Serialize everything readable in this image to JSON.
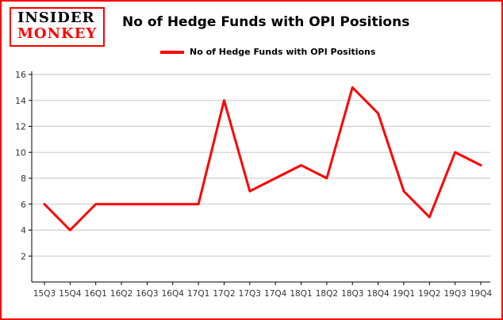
{
  "logo": {
    "line1": "INSIDER",
    "line2": "MONKEY"
  },
  "header": {
    "title": "No of Hedge Funds with OPI Positions"
  },
  "legend": {
    "label": "No of Hedge Funds with OPI Positions"
  },
  "colors": {
    "line": "#fe0000",
    "border": "#fe0000",
    "grid": "#c6c6c6",
    "axis": "#000000",
    "tick_text": "#333333"
  },
  "chart_data": {
    "type": "line",
    "title": "No of Hedge Funds with OPI Positions",
    "categories": [
      "15Q3",
      "15Q4",
      "16Q1",
      "16Q2",
      "16Q3",
      "16Q4",
      "17Q1",
      "17Q2",
      "17Q3",
      "17Q4",
      "18Q1",
      "18Q2",
      "18Q3",
      "18Q4",
      "19Q1",
      "19Q2",
      "19Q3",
      "19Q4"
    ],
    "values": [
      6,
      4,
      6,
      6,
      6,
      6,
      6,
      14,
      7,
      8,
      9,
      8,
      15,
      13,
      7,
      5,
      10,
      9
    ],
    "series_name": "No of Hedge Funds with OPI Positions",
    "xlabel": "",
    "ylabel": "",
    "ylim": [
      0,
      16
    ],
    "yticks": [
      2,
      4,
      6,
      8,
      10,
      12,
      14,
      16
    ],
    "grid": true,
    "legend_position": "top"
  }
}
